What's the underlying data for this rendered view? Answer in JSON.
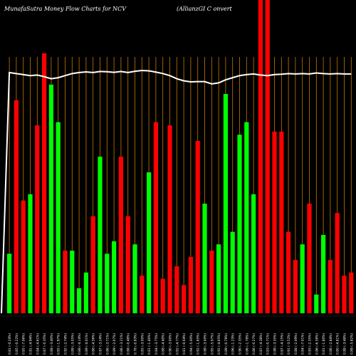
{
  "chart_data": {
    "type": "bar",
    "title_left": "MunafaSutra  Money Flow  Charts for NCV",
    "title_right": "(AllianzGI C                                onvert",
    "categories": [
      "0.81 (-0.24%)",
      "0.85 (-0.22%)",
      "0.85 (-7.06%)",
      "0.81 (-4.94%)",
      "0.84 (-4.61%)",
      "0.87 (-0.35%)",
      "0.88 (-3.40%)",
      "0.85 (-1.97%)",
      "0.92 (-2.74%)",
      "0.89 (-3.05%)",
      "0.88 (-4.14%)",
      "0.89 (-4.01%)",
      "0.88 (-4.56%)",
      "0.87 (-3.24%)",
      "0.86 (-3.71%)",
      "0.89 (-2.07%)",
      "0.86 (-3.21%)",
      "0.88 (-0.48%)",
      "0.78 (-0.93%)",
      "0.85 (-3.00%)",
      "0.81 (-1.40%)",
      "0.84 (-3.75%)",
      "0.88 (-4.40%)",
      "0.90 (-3.00%)",
      "0.92 (-4.77%)",
      "0.81 (-0.04%)",
      "0.94 (-5.00%)",
      "0.92 (-1.85%)",
      "0.89 (-3.00%)",
      "0.95 (-5.07%)",
      "0.92 (-4.65%)",
      "0.89 (-0.78%)",
      "0.86 (-1.23%)",
      "0.90 (-2.35%)",
      "0.86 (-1.78%)",
      "0.86 (-0.27%)",
      "0.87 (-4.38%)",
      "0.83 (-0.71%)",
      "0.89 (-3.35%)",
      "0.87 (-4.25%)",
      "0.91 (-3.52%)",
      "0.88 (-2.09%)",
      "0.84 (-7.01%)",
      "0.83 (-2.35%)",
      "0.86 (-6.58%)",
      "0.81 (-1.80%)",
      "0.86 (-2.84%)",
      "0.80 (-4.81%)",
      "0.89 (-3.48%)",
      "0.89 (-5.82%)"
    ],
    "series": [
      {
        "colors": [
          "green",
          "red",
          "red",
          "green",
          "red",
          "red",
          "green",
          "green",
          "red",
          "green",
          "green",
          "green",
          "red",
          "green",
          "green",
          "green",
          "red",
          "red",
          "green",
          "red",
          "green",
          "red",
          "red",
          "red",
          "red",
          "red",
          "red",
          "red",
          "green",
          "red",
          "green",
          "green",
          "green",
          "green",
          "green",
          "green",
          "red",
          "red",
          "red",
          "red",
          "red",
          "red",
          "green",
          "red",
          "green",
          "green",
          "red",
          "red",
          "red",
          "red"
        ],
        "values": [
          19,
          68,
          36,
          38,
          60,
          83,
          73,
          61,
          20,
          20,
          8,
          13,
          31,
          50,
          19,
          23,
          50,
          31,
          22,
          12,
          45,
          61,
          11,
          60,
          15,
          9,
          18,
          55,
          35,
          20,
          22,
          70,
          26,
          57,
          61,
          38,
          100,
          100,
          58,
          58,
          26,
          17,
          22,
          35,
          6,
          25,
          17,
          32,
          12,
          13
        ]
      }
    ],
    "line_values": [
      82,
      81.5,
      81,
      80.5,
      80.8,
      80,
      79,
      79.5,
      80.5,
      81.5,
      82,
      82.3,
      82,
      82.5,
      82.4,
      82.1,
      82.5,
      82,
      82.6,
      83,
      82.8,
      82.2,
      81.5,
      80.5,
      79,
      78,
      77.5,
      77.6,
      77.6,
      76.5,
      77,
      78.5,
      79.5,
      80.5,
      81,
      81.3,
      80.8,
      80.5,
      81,
      81.2,
      81.5,
      81.3,
      81.5,
      81.3,
      81.8,
      81.5,
      81.3,
      81.5,
      81.3,
      81.3
    ],
    "colors": {
      "background": "#000000",
      "up": "#00ff00",
      "down": "#ff0000",
      "grid": "#c87800",
      "line": "#ffffff",
      "text": "#ffffff"
    },
    "ylim": [
      0,
      100
    ],
    "grid": true
  }
}
